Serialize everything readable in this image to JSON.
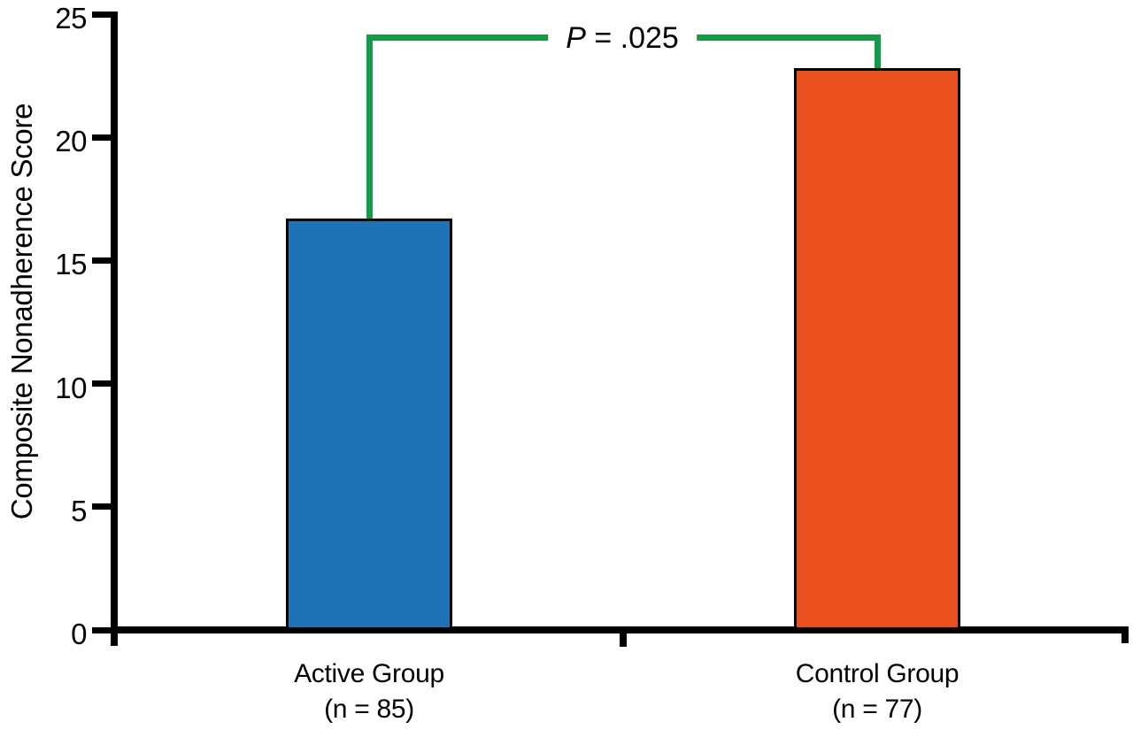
{
  "figure": {
    "background": "#ffffff",
    "text_color": "#000000"
  },
  "chart_data": {
    "type": "bar",
    "title": "",
    "ylabel": "Composite Nonadherence Score",
    "xlabel": "",
    "ylim": [
      0,
      25
    ],
    "yticks": [
      0,
      5,
      10,
      15,
      20,
      25
    ],
    "grid": false,
    "legend": null,
    "categories": [
      "Active Group",
      "Control Group"
    ],
    "category_sublabels": [
      "(n = 85)",
      "(n = 77)"
    ],
    "series": [
      {
        "name": "Composite Nonadherence Score",
        "values": [
          16.7,
          22.8
        ]
      }
    ],
    "bar_colors": [
      "#1F72B6",
      "#E9501E"
    ],
    "bar_border_color": "#000000",
    "axis_color": "#000000",
    "annotation": {
      "full": "P = .025",
      "italic": "P",
      "text": " = .025",
      "color": "#149B47",
      "connects": [
        "Active Group",
        "Control Group"
      ]
    }
  }
}
